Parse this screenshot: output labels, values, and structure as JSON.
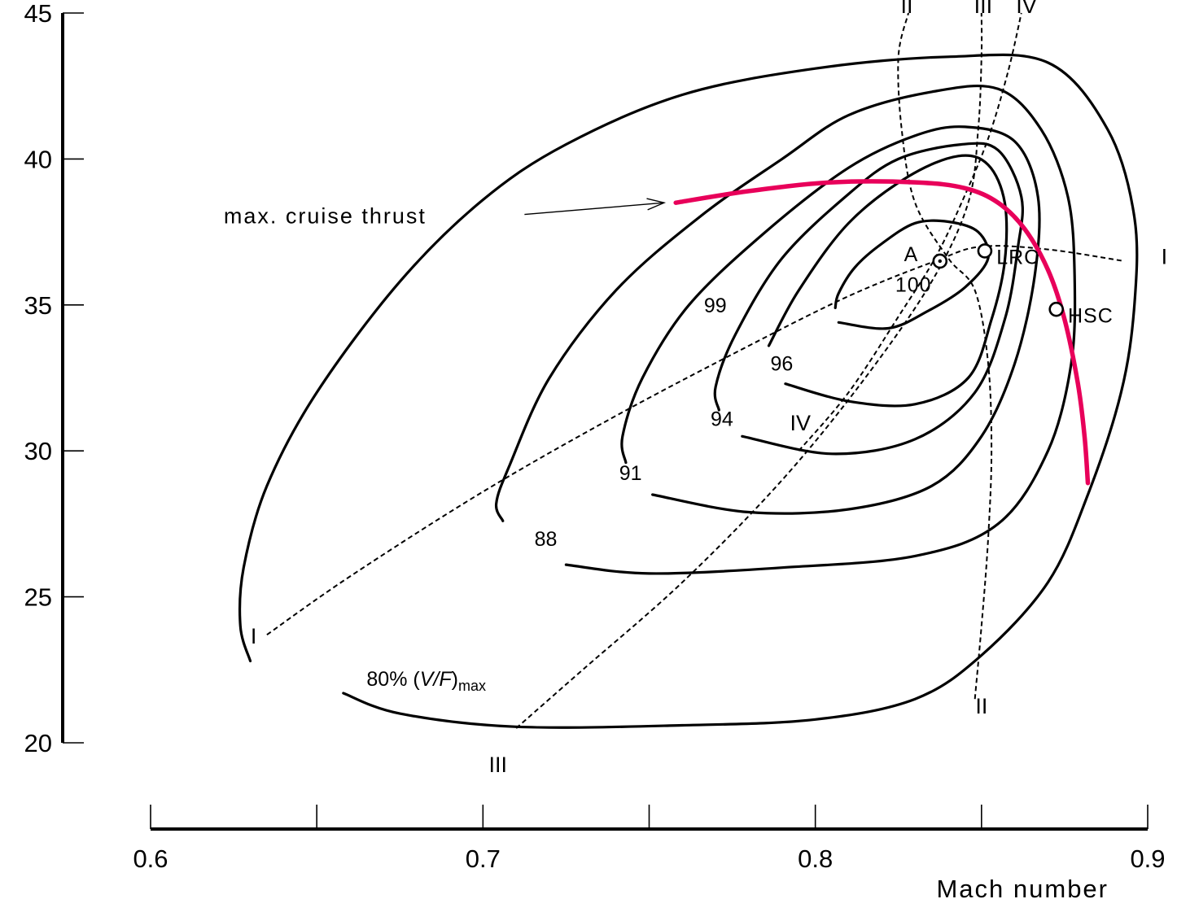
{
  "chart_data": {
    "type": "contour",
    "xlabel": "Mach number",
    "ylabel": "",
    "xlim": [
      0.6,
      0.9
    ],
    "ylim": [
      20,
      45
    ],
    "x_ticks": [
      {
        "value": 0.6,
        "label": "0.6"
      },
      {
        "value": 0.65,
        "label": ""
      },
      {
        "value": 0.7,
        "label": "0.7"
      },
      {
        "value": 0.75,
        "label": ""
      },
      {
        "value": 0.8,
        "label": "0.8"
      },
      {
        "value": 0.85,
        "label": ""
      },
      {
        "value": 0.9,
        "label": "0.9"
      }
    ],
    "y_ticks": [
      {
        "value": 20,
        "label": "20"
      },
      {
        "value": 25,
        "label": "25"
      },
      {
        "value": 30,
        "label": "30"
      },
      {
        "value": 35,
        "label": "35"
      },
      {
        "value": 40,
        "label": "40"
      },
      {
        "value": 45,
        "label": "45"
      }
    ],
    "contours": [
      {
        "level": "80",
        "label": "80%",
        "label_suffix": "(",
        "label_var": "V/F",
        "label_sub": "max",
        "label_at": [
          0.665,
          21.95
        ],
        "points": [
          [
            0.658,
            21.7
          ],
          [
            0.675,
            21.0
          ],
          [
            0.71,
            20.55
          ],
          [
            0.76,
            20.6
          ],
          [
            0.8,
            20.8
          ],
          [
            0.83,
            21.5
          ],
          [
            0.85,
            23.0
          ],
          [
            0.87,
            25.5
          ],
          [
            0.882,
            28.5
          ],
          [
            0.892,
            32
          ],
          [
            0.896,
            35
          ],
          [
            0.896,
            38
          ],
          [
            0.888,
            41
          ],
          [
            0.87,
            43.3
          ],
          [
            0.84,
            43.5
          ],
          [
            0.8,
            43.1
          ],
          [
            0.76,
            42.2
          ],
          [
            0.725,
            40.5
          ],
          [
            0.7,
            38.6
          ],
          [
            0.675,
            35.8
          ],
          [
            0.65,
            32
          ],
          [
            0.635,
            28.8
          ],
          [
            0.628,
            26
          ],
          [
            0.627,
            24
          ],
          [
            0.63,
            22.8
          ]
        ]
      },
      {
        "level": "88",
        "label": "88",
        "label_at": [
          0.7155,
          26.75
        ],
        "points": [
          [
            0.725,
            26.1
          ],
          [
            0.75,
            25.8
          ],
          [
            0.79,
            26.0
          ],
          [
            0.83,
            26.4
          ],
          [
            0.855,
            27.5
          ],
          [
            0.87,
            30
          ],
          [
            0.877,
            33
          ],
          [
            0.878,
            36
          ],
          [
            0.876,
            38.7
          ],
          [
            0.868,
            41
          ],
          [
            0.855,
            42.4
          ],
          [
            0.835,
            42.3
          ],
          [
            0.81,
            41.5
          ],
          [
            0.79,
            40
          ],
          [
            0.765,
            38
          ],
          [
            0.74,
            35.5
          ],
          [
            0.72,
            32.5
          ],
          [
            0.708,
            29.5
          ],
          [
            0.704,
            28.2
          ],
          [
            0.706,
            27.6
          ]
        ]
      },
      {
        "level": "91",
        "label": "91",
        "label_at": [
          0.741,
          29.0
        ],
        "points": [
          [
            0.751,
            28.5
          ],
          [
            0.78,
            27.9
          ],
          [
            0.81,
            28.0
          ],
          [
            0.835,
            28.8
          ],
          [
            0.85,
            30.5
          ],
          [
            0.86,
            33
          ],
          [
            0.866,
            36
          ],
          [
            0.867,
            38.7
          ],
          [
            0.86,
            40.6
          ],
          [
            0.845,
            41.1
          ],
          [
            0.83,
            40.8
          ],
          [
            0.81,
            39.7
          ],
          [
            0.785,
            37.5
          ],
          [
            0.762,
            35
          ],
          [
            0.748,
            32.5
          ],
          [
            0.742,
            30.5
          ],
          [
            0.743,
            29.6
          ]
        ]
      },
      {
        "level": "94",
        "label": "94",
        "label_at": [
          0.7685,
          30.85
        ],
        "points": [
          [
            0.778,
            30.5
          ],
          [
            0.805,
            29.9
          ],
          [
            0.83,
            30.4
          ],
          [
            0.848,
            32
          ],
          [
            0.857,
            34.5
          ],
          [
            0.861,
            37
          ],
          [
            0.862,
            38.7
          ],
          [
            0.855,
            40.3
          ],
          [
            0.844,
            40.5
          ],
          [
            0.825,
            40
          ],
          [
            0.81,
            38.8
          ],
          [
            0.79,
            36.6
          ],
          [
            0.776,
            34
          ],
          [
            0.77,
            32.2
          ],
          [
            0.771,
            31.4
          ]
        ]
      },
      {
        "level": "96",
        "label": "96",
        "label_at": [
          0.7865,
          32.75
        ],
        "points": [
          [
            0.791,
            32.3
          ],
          [
            0.81,
            31.7
          ],
          [
            0.83,
            31.6
          ],
          [
            0.846,
            32.5
          ],
          [
            0.853,
            34.5
          ],
          [
            0.857,
            36.5
          ],
          [
            0.857,
            38.5
          ],
          [
            0.852,
            39.8
          ],
          [
            0.843,
            40.1
          ],
          [
            0.828,
            39.4
          ],
          [
            0.81,
            37.8
          ],
          [
            0.795,
            35.5
          ],
          [
            0.786,
            33.6
          ]
        ]
      },
      {
        "level": "99",
        "label": "99",
        "label_at": [
          0.7665,
          34.75
        ],
        "points": [
          [
            0.807,
            34.4
          ],
          [
            0.822,
            34.2
          ],
          [
            0.834,
            34.8
          ],
          [
            0.845,
            35.6
          ],
          [
            0.852,
            36.6
          ],
          [
            0.849,
            37.5
          ],
          [
            0.84,
            37.85
          ],
          [
            0.83,
            37.8
          ],
          [
            0.82,
            37.1
          ],
          [
            0.812,
            36.3
          ],
          [
            0.807,
            35.4
          ],
          [
            0.806,
            34.9
          ]
        ]
      }
    ],
    "guide_lines": [
      {
        "name": "I",
        "label_start": "I",
        "label_end": "I",
        "points": [
          [
            0.635,
            23.7
          ],
          [
            0.66,
            25.7
          ],
          [
            0.7,
            28.6
          ],
          [
            0.74,
            31.2
          ],
          [
            0.78,
            33.6
          ],
          [
            0.81,
            35.3
          ],
          [
            0.836,
            36.5
          ],
          [
            0.85,
            37.0
          ],
          [
            0.87,
            36.9
          ],
          [
            0.893,
            36.5
          ]
        ],
        "label_start_at": [
          0.631,
          23.4
        ],
        "label_end_at": [
          0.905,
          36.4
        ]
      },
      {
        "name": "II",
        "label_start": "II",
        "label_end": "II",
        "points": [
          [
            0.848,
            21.5
          ],
          [
            0.85,
            24
          ],
          [
            0.852,
            27
          ],
          [
            0.853,
            30
          ],
          [
            0.852,
            33
          ],
          [
            0.848,
            35.5
          ],
          [
            0.84,
            36.6
          ],
          [
            0.83,
            38.5
          ],
          [
            0.826,
            41
          ],
          [
            0.825,
            43.5
          ],
          [
            0.828,
            45
          ]
        ],
        "label_start_at": [
          0.85,
          21.0
        ],
        "label_end_at": [
          0.8275,
          45
        ]
      },
      {
        "name": "III",
        "label_start": "III",
        "label_end": "III",
        "points": [
          [
            0.71,
            20.5
          ],
          [
            0.73,
            22.5
          ],
          [
            0.76,
            25.5
          ],
          [
            0.79,
            29
          ],
          [
            0.815,
            32.5
          ],
          [
            0.835,
            35.8
          ],
          [
            0.846,
            38.5
          ],
          [
            0.849,
            41
          ],
          [
            0.85,
            43.5
          ],
          [
            0.85,
            45
          ]
        ],
        "label_start_at": [
          0.7045,
          19.0
        ],
        "label_end_at": [
          0.8505,
          45
        ]
      },
      {
        "name": "IV",
        "label_start": "IV",
        "label_end": "IV",
        "points": [
          [
            0.795,
            30
          ],
          [
            0.81,
            32
          ],
          [
            0.825,
            34.6
          ],
          [
            0.836,
            36.6
          ],
          [
            0.844,
            38.5
          ],
          [
            0.852,
            40.7
          ],
          [
            0.858,
            43
          ],
          [
            0.862,
            45
          ]
        ],
        "label_start_at": [
          0.7955,
          30.7
        ],
        "label_end_at": [
          0.8635,
          45
        ]
      }
    ],
    "points": [
      {
        "name": "A",
        "x": 0.8375,
        "y": 36.5,
        "label_dx": -0.0065,
        "label_dy": 0.25
      },
      {
        "name": "100",
        "x": 0.8375,
        "y": 36.5,
        "label_dx": -0.0025,
        "label_dy": -0.8,
        "no_marker": true
      },
      {
        "name": "LRC",
        "x": 0.851,
        "y": 36.85,
        "label_dx": 0.0035,
        "label_dy": -0.2
      },
      {
        "name": "HSC",
        "x": 0.8725,
        "y": 34.85,
        "label_dx": 0.0035,
        "label_dy": -0.2
      }
    ],
    "thrust_line": {
      "label": "max. cruise thrust",
      "color": "#e8005a",
      "points": [
        [
          0.758,
          38.5
        ],
        [
          0.78,
          38.9
        ],
        [
          0.805,
          39.2
        ],
        [
          0.83,
          39.2
        ],
        [
          0.845,
          39.0
        ],
        [
          0.855,
          38.5
        ],
        [
          0.863,
          37.6
        ],
        [
          0.87,
          36.2
        ],
        [
          0.875,
          34.5
        ],
        [
          0.879,
          32.3
        ],
        [
          0.881,
          30.5
        ],
        [
          0.882,
          28.9
        ]
      ],
      "label_at": [
        0.622,
        37.8
      ],
      "arrow_from": [
        0.7125,
        38.1
      ],
      "arrow_to": [
        0.7545,
        38.5
      ]
    }
  }
}
